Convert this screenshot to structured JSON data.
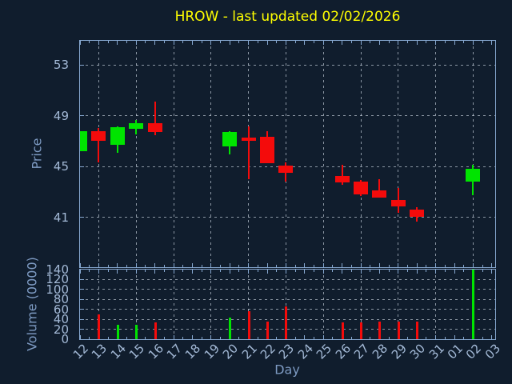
{
  "title": "HROW - last updated 02/02/2026",
  "axis_titles": {
    "price": "Price",
    "volume": "Volume (0000)",
    "day": "Day"
  },
  "colors": {
    "background": "#101d2d",
    "frame": "#86a7cf",
    "tick_label": "#a3b9d6",
    "axis_title": "#7d9ac2",
    "grid": "#c8d2de",
    "title": "#ffff00",
    "up": "#00e400",
    "down": "#f40b0b"
  },
  "chart_data": [
    {
      "type": "candlestick",
      "panel": "price",
      "ylabel": "Price",
      "xlabel": "Day",
      "yticks": [
        41,
        45,
        49,
        53
      ],
      "ylim": [
        37.1,
        54.9
      ],
      "grid": "dashed, horizontal at yticks and vertical at alternate days",
      "categories": [
        "12",
        "13",
        "14",
        "15",
        "16",
        "17",
        "18",
        "19",
        "20",
        "21",
        "22",
        "23",
        "24",
        "25",
        "26",
        "27",
        "28",
        "29",
        "30",
        "31",
        "01",
        "02",
        "03"
      ],
      "vgrid_categories": [
        "13",
        "15",
        "17",
        "19",
        "21",
        "23",
        "25",
        "27",
        "29",
        "31",
        "02"
      ],
      "candles": [
        {
          "day": "12",
          "open": 46.25,
          "high": 47.8,
          "low": 46.25,
          "close": 47.8,
          "direction": "up"
        },
        {
          "day": "13",
          "open": 47.8,
          "high": 48.05,
          "low": 45.35,
          "close": 47.05,
          "direction": "down"
        },
        {
          "day": "14",
          "open": 46.7,
          "high": 48.2,
          "low": 46.1,
          "close": 48.1,
          "direction": "up"
        },
        {
          "day": "15",
          "open": 48.0,
          "high": 48.7,
          "low": 47.55,
          "close": 48.45,
          "direction": "up"
        },
        {
          "day": "16",
          "open": 48.45,
          "high": 50.1,
          "low": 47.45,
          "close": 47.7,
          "direction": "down"
        },
        {
          "day": "20",
          "open": 46.6,
          "high": 47.8,
          "low": 45.95,
          "close": 47.7,
          "direction": "up"
        },
        {
          "day": "21",
          "open": 47.3,
          "high": 48.15,
          "low": 44.0,
          "close": 47.05,
          "direction": "down"
        },
        {
          "day": "22",
          "open": 47.35,
          "high": 47.8,
          "low": 45.25,
          "close": 45.25,
          "direction": "down"
        },
        {
          "day": "23",
          "open": 45.1,
          "high": 45.35,
          "low": 43.8,
          "close": 44.5,
          "direction": "down"
        },
        {
          "day": "26",
          "open": 44.25,
          "high": 45.15,
          "low": 43.55,
          "close": 43.75,
          "direction": "down"
        },
        {
          "day": "27",
          "open": 43.8,
          "high": 43.95,
          "low": 42.7,
          "close": 42.85,
          "direction": "down"
        },
        {
          "day": "28",
          "open": 43.15,
          "high": 44.05,
          "low": 42.6,
          "close": 42.6,
          "direction": "down"
        },
        {
          "day": "29",
          "open": 42.4,
          "high": 43.3,
          "low": 41.4,
          "close": 41.85,
          "direction": "down"
        },
        {
          "day": "30",
          "open": 41.65,
          "high": 41.8,
          "low": 40.7,
          "close": 41.05,
          "direction": "down"
        },
        {
          "day": "02",
          "open": 43.8,
          "high": 45.15,
          "low": 42.75,
          "close": 44.85,
          "direction": "up"
        }
      ]
    },
    {
      "type": "bar",
      "panel": "volume",
      "ylabel": "Volume (0000)",
      "yticks": [
        0,
        20,
        40,
        60,
        80,
        100,
        120,
        140
      ],
      "ylim": [
        0,
        140
      ],
      "bars": [
        {
          "day": "13",
          "value": 50,
          "direction": "down"
        },
        {
          "day": "14",
          "value": 29,
          "direction": "up"
        },
        {
          "day": "15",
          "value": 29,
          "direction": "up"
        },
        {
          "day": "16",
          "value": 34,
          "direction": "down"
        },
        {
          "day": "20",
          "value": 43,
          "direction": "up"
        },
        {
          "day": "21",
          "value": 57,
          "direction": "down"
        },
        {
          "day": "22",
          "value": 35,
          "direction": "down"
        },
        {
          "day": "23",
          "value": 66,
          "direction": "down"
        },
        {
          "day": "26",
          "value": 34,
          "direction": "down"
        },
        {
          "day": "27",
          "value": 34,
          "direction": "down"
        },
        {
          "day": "28",
          "value": 35,
          "direction": "down"
        },
        {
          "day": "29",
          "value": 35,
          "direction": "down"
        },
        {
          "day": "30",
          "value": 35,
          "direction": "down"
        },
        {
          "day": "02",
          "value": 140,
          "direction": "up"
        }
      ]
    }
  ]
}
